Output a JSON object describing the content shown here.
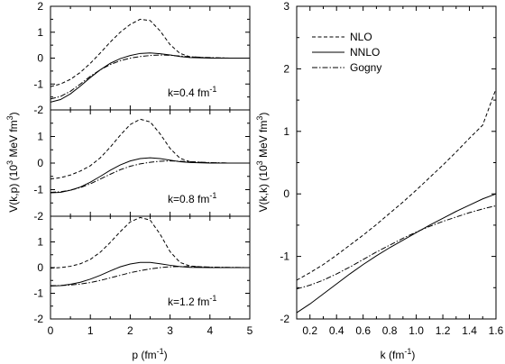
{
  "chart_data": [
    {
      "type": "line",
      "panel": "left",
      "xlabel": "p (fm⁻¹)",
      "ylabel": "V(k,p) (10³ MeV fm³)",
      "xlim": [
        0,
        5
      ],
      "xticks": [
        "0",
        "1",
        "2",
        "3",
        "4",
        "5"
      ],
      "legend": [],
      "subpanels": [
        {
          "label": "k=0.4 fm⁻¹",
          "ylim": [
            -2,
            2
          ],
          "yticks": [
            "-2",
            "-1",
            "0",
            "1",
            "2"
          ],
          "series": [
            {
              "name": "NLO",
              "style": "dashed",
              "x": [
                0,
                0.25,
                0.5,
                0.75,
                1,
                1.25,
                1.5,
                1.75,
                2,
                2.25,
                2.5,
                2.75,
                3,
                3.25,
                3.5,
                4,
                4.5,
                5
              ],
              "y": [
                -1.1,
                -1.0,
                -0.82,
                -0.55,
                -0.2,
                0.2,
                0.62,
                1.0,
                1.3,
                1.5,
                1.45,
                1.05,
                0.52,
                0.18,
                0.05,
                0.01,
                0.0,
                0.0
              ]
            },
            {
              "name": "NNLO",
              "style": "solid",
              "x": [
                0,
                0.25,
                0.5,
                0.75,
                1,
                1.25,
                1.5,
                1.75,
                2,
                2.25,
                2.5,
                2.75,
                3,
                3.25,
                3.5,
                4,
                4.5,
                5
              ],
              "y": [
                -1.7,
                -1.6,
                -1.38,
                -1.08,
                -0.75,
                -0.45,
                -0.2,
                -0.02,
                0.1,
                0.18,
                0.2,
                0.17,
                0.12,
                0.06,
                0.02,
                0.0,
                0.0,
                0.0
              ]
            },
            {
              "name": "Gogny",
              "style": "dashdot",
              "x": [
                0,
                0.25,
                0.5,
                0.75,
                1,
                1.25,
                1.5,
                1.75,
                2,
                2.25,
                2.5,
                2.75,
                3,
                3.25,
                3.5,
                4,
                4.5,
                5
              ],
              "y": [
                -1.58,
                -1.48,
                -1.28,
                -1.0,
                -0.7,
                -0.45,
                -0.25,
                -0.1,
                0.0,
                0.06,
                0.1,
                0.12,
                0.11,
                0.08,
                0.05,
                0.02,
                0.0,
                0.0
              ]
            }
          ]
        },
        {
          "label": "k=0.8 fm⁻¹",
          "ylim": [
            -2,
            2
          ],
          "yticks": [
            "-2",
            "-1",
            "0",
            "1",
            "2"
          ],
          "series": [
            {
              "name": "NLO",
              "style": "dashed",
              "x": [
                0,
                0.25,
                0.5,
                0.75,
                1,
                1.25,
                1.5,
                1.75,
                2,
                2.25,
                2.5,
                2.75,
                3,
                3.25,
                3.5,
                4,
                4.5,
                5
              ],
              "y": [
                -0.6,
                -0.55,
                -0.45,
                -0.3,
                -0.1,
                0.2,
                0.6,
                1.05,
                1.45,
                1.65,
                1.55,
                1.1,
                0.55,
                0.18,
                0.05,
                0.01,
                0.0,
                0.0
              ]
            },
            {
              "name": "NNLO",
              "style": "solid",
              "x": [
                0,
                0.25,
                0.5,
                0.75,
                1,
                1.25,
                1.5,
                1.75,
                2,
                2.25,
                2.5,
                2.75,
                3,
                3.25,
                3.5,
                4,
                4.5,
                5
              ],
              "y": [
                -1.12,
                -1.1,
                -1.02,
                -0.9,
                -0.72,
                -0.5,
                -0.27,
                -0.07,
                0.08,
                0.17,
                0.2,
                0.17,
                0.11,
                0.05,
                0.02,
                0.0,
                0.0,
                0.0
              ]
            },
            {
              "name": "Gogny",
              "style": "dashdot",
              "x": [
                0,
                0.25,
                0.5,
                0.75,
                1,
                1.25,
                1.5,
                1.75,
                2,
                2.25,
                2.5,
                2.75,
                3,
                3.25,
                3.5,
                4,
                4.5,
                5
              ],
              "y": [
                -1.1,
                -1.08,
                -1.02,
                -0.92,
                -0.78,
                -0.6,
                -0.42,
                -0.25,
                -0.12,
                -0.03,
                0.03,
                0.07,
                0.08,
                0.07,
                0.05,
                0.02,
                0.0,
                0.0
              ]
            }
          ]
        },
        {
          "label": "k=1.2 fm⁻¹",
          "ylim": [
            -2,
            2
          ],
          "yticks": [
            "-2",
            "-1",
            "0",
            "1",
            "2"
          ],
          "series": [
            {
              "name": "NLO",
              "style": "dashed",
              "x": [
                0,
                0.25,
                0.5,
                0.75,
                1,
                1.25,
                1.5,
                1.75,
                2,
                2.25,
                2.5,
                2.75,
                3,
                3.25,
                3.5,
                4,
                4.5,
                5
              ],
              "y": [
                -0.02,
                0.0,
                0.05,
                0.15,
                0.32,
                0.6,
                0.98,
                1.4,
                1.78,
                1.95,
                1.85,
                1.3,
                0.62,
                0.2,
                0.06,
                0.01,
                0.0,
                0.0
              ]
            },
            {
              "name": "NNLO",
              "style": "solid",
              "x": [
                0,
                0.25,
                0.5,
                0.75,
                1,
                1.25,
                1.5,
                1.75,
                2,
                2.25,
                2.5,
                2.75,
                3,
                3.25,
                3.5,
                4,
                4.5,
                5
              ],
              "y": [
                -0.72,
                -0.7,
                -0.65,
                -0.57,
                -0.45,
                -0.3,
                -0.13,
                0.03,
                0.14,
                0.2,
                0.2,
                0.15,
                0.09,
                0.04,
                0.01,
                0.0,
                0.0,
                0.0
              ]
            },
            {
              "name": "Gogny",
              "style": "dashdot",
              "x": [
                0,
                0.25,
                0.5,
                0.75,
                1,
                1.25,
                1.5,
                1.75,
                2,
                2.25,
                2.5,
                2.75,
                3,
                3.25,
                3.5,
                4,
                4.5,
                5
              ],
              "y": [
                -0.7,
                -0.7,
                -0.68,
                -0.64,
                -0.58,
                -0.5,
                -0.4,
                -0.3,
                -0.2,
                -0.12,
                -0.05,
                0.0,
                0.03,
                0.04,
                0.04,
                0.02,
                0.01,
                0.0
              ]
            }
          ]
        }
      ]
    },
    {
      "type": "line",
      "panel": "right",
      "xlabel": "k (fm⁻¹)",
      "ylabel": "V(k,k) (10³ MeV fm³)",
      "xlim": [
        0.1,
        1.6
      ],
      "ylim": [
        -2,
        3
      ],
      "xticks": [
        "0.2",
        "0.4",
        "0.6",
        "0.8",
        "1.0",
        "1.2",
        "1.4",
        "1.6"
      ],
      "yticks": [
        "-2",
        "-1",
        "0",
        "1",
        "2",
        "3"
      ],
      "legend_position": "top-left",
      "legend": [
        {
          "name": "NLO",
          "style": "dashed"
        },
        {
          "name": "NNLO",
          "style": "solid"
        },
        {
          "name": "Gogny",
          "style": "dashdot"
        }
      ],
      "series": [
        {
          "name": "NLO",
          "style": "dashed",
          "x": [
            0.1,
            0.2,
            0.3,
            0.4,
            0.5,
            0.6,
            0.7,
            0.8,
            0.9,
            1.0,
            1.1,
            1.2,
            1.3,
            1.4,
            1.5,
            1.6
          ],
          "y": [
            -1.38,
            -1.26,
            -1.13,
            -0.98,
            -0.82,
            -0.66,
            -0.49,
            -0.31,
            -0.13,
            0.06,
            0.26,
            0.46,
            0.67,
            0.89,
            1.1,
            1.68
          ]
        },
        {
          "name": "NNLO",
          "style": "solid",
          "x": [
            0.1,
            0.2,
            0.3,
            0.4,
            0.5,
            0.6,
            0.7,
            0.8,
            0.9,
            1.0,
            1.1,
            1.2,
            1.3,
            1.4,
            1.5,
            1.6
          ],
          "y": [
            -1.9,
            -1.76,
            -1.6,
            -1.44,
            -1.28,
            -1.13,
            -0.99,
            -0.86,
            -0.74,
            -0.62,
            -0.5,
            -0.39,
            -0.28,
            -0.18,
            -0.08,
            0.0
          ]
        },
        {
          "name": "Gogny",
          "style": "dashdot",
          "x": [
            0.1,
            0.2,
            0.3,
            0.4,
            0.5,
            0.6,
            0.7,
            0.8,
            0.9,
            1.0,
            1.1,
            1.2,
            1.3,
            1.4,
            1.5,
            1.6
          ],
          "y": [
            -1.52,
            -1.46,
            -1.38,
            -1.28,
            -1.17,
            -1.05,
            -0.93,
            -0.82,
            -0.71,
            -0.61,
            -0.52,
            -0.44,
            -0.37,
            -0.3,
            -0.24,
            -0.19
          ]
        }
      ]
    }
  ]
}
